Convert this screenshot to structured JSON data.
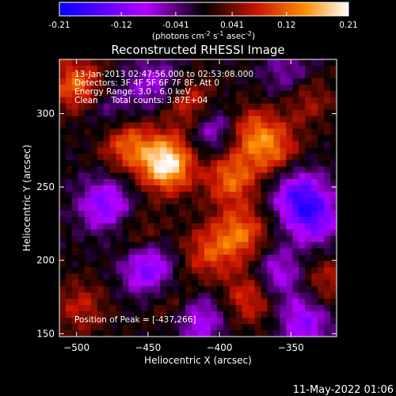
{
  "chart_data": {
    "type": "heatmap",
    "title": "Reconstructed RHESSI Image",
    "xlabel": "Heliocentric X (arcsec)",
    "ylabel": "Heliocentric Y (arcsec)",
    "xlim": [
      -512,
      -318
    ],
    "ylim": [
      148,
      337
    ],
    "x_ticks": [
      -500,
      -450,
      -400,
      -350
    ],
    "y_ticks": [
      150,
      200,
      250,
      300
    ],
    "colorbar": {
      "ticks": [
        "-0.21",
        "-0.12",
        "-0.041",
        "0.041",
        "0.12",
        "0.21"
      ],
      "tick_values": [
        -0.21,
        -0.12,
        -0.041,
        0.041,
        0.12,
        0.21
      ],
      "range": [
        -0.21,
        0.21
      ],
      "units_text": "(photons cm",
      "units_exp1": "-2",
      "units_mid": " s",
      "units_exp2": "-1",
      "units_mid2": " asec",
      "units_exp3": "-2",
      "units_close": ")",
      "colors": {
        "low": "#0000ff",
        "mid_low": "#b400ff",
        "zero": "#000000",
        "mid_high": "#c81400",
        "orange": "#ff8c00",
        "high": "#ffffff"
      }
    },
    "info_lines": [
      "13-Jan-2013 02:47:56.000 to 02:53:08.000",
      "Detectors: 3F 4F 5F 6F 7F 8F, Att 0",
      "Energy Range: 3.0 - 6.0 keV",
      "Clean     Total counts: 3.87E+04"
    ],
    "peak_label": "Position of Peak = [-437,266]",
    "peak": {
      "x": -437,
      "y": 266,
      "value": 0.21
    },
    "features": [
      {
        "kind": "emission",
        "x": -437,
        "y": 266,
        "amp": 0.21
      },
      {
        "kind": "emission",
        "x": -465,
        "y": 280,
        "amp": 0.12
      },
      {
        "kind": "emission",
        "x": -420,
        "y": 305,
        "amp": 0.1
      },
      {
        "kind": "emission",
        "x": -392,
        "y": 256,
        "amp": 0.12
      },
      {
        "kind": "emission",
        "x": -378,
        "y": 288,
        "amp": 0.1
      },
      {
        "kind": "emission",
        "x": -362,
        "y": 275,
        "amp": 0.1
      },
      {
        "kind": "emission",
        "x": -385,
        "y": 218,
        "amp": 0.12
      },
      {
        "kind": "emission",
        "x": -408,
        "y": 205,
        "amp": 0.09
      },
      {
        "kind": "emission",
        "x": -378,
        "y": 175,
        "amp": 0.1
      },
      {
        "kind": "emission",
        "x": -500,
        "y": 320,
        "amp": 0.12
      },
      {
        "kind": "emission",
        "x": -497,
        "y": 168,
        "amp": 0.07
      },
      {
        "kind": "emission",
        "x": -430,
        "y": 170,
        "amp": 0.06
      },
      {
        "kind": "emission",
        "x": -455,
        "y": 215,
        "amp": 0.06
      },
      {
        "kind": "emission",
        "x": -340,
        "y": 312,
        "amp": 0.08
      },
      {
        "kind": "emission",
        "x": -325,
        "y": 185,
        "amp": 0.07
      },
      {
        "kind": "absorption",
        "x": -480,
        "y": 238,
        "amp": -0.12
      },
      {
        "kind": "absorption",
        "x": -450,
        "y": 195,
        "amp": -0.14
      },
      {
        "kind": "absorption",
        "x": -415,
        "y": 160,
        "amp": -0.11
      },
      {
        "kind": "absorption",
        "x": -345,
        "y": 245,
        "amp": -0.13
      },
      {
        "kind": "absorption",
        "x": -333,
        "y": 228,
        "amp": -0.12
      },
      {
        "kind": "absorption",
        "x": -405,
        "y": 290,
        "amp": -0.1
      },
      {
        "kind": "absorption",
        "x": -360,
        "y": 190,
        "amp": -0.1
      },
      {
        "kind": "absorption",
        "x": -340,
        "y": 158,
        "amp": -0.11
      },
      {
        "kind": "absorption",
        "x": -445,
        "y": 320,
        "amp": -0.08
      },
      {
        "kind": "absorption",
        "x": -350,
        "y": 325,
        "amp": -0.08
      },
      {
        "kind": "absorption",
        "x": -475,
        "y": 300,
        "amp": -0.06
      }
    ]
  },
  "footer": {
    "timestamp": "11-May-2022 01:06"
  }
}
